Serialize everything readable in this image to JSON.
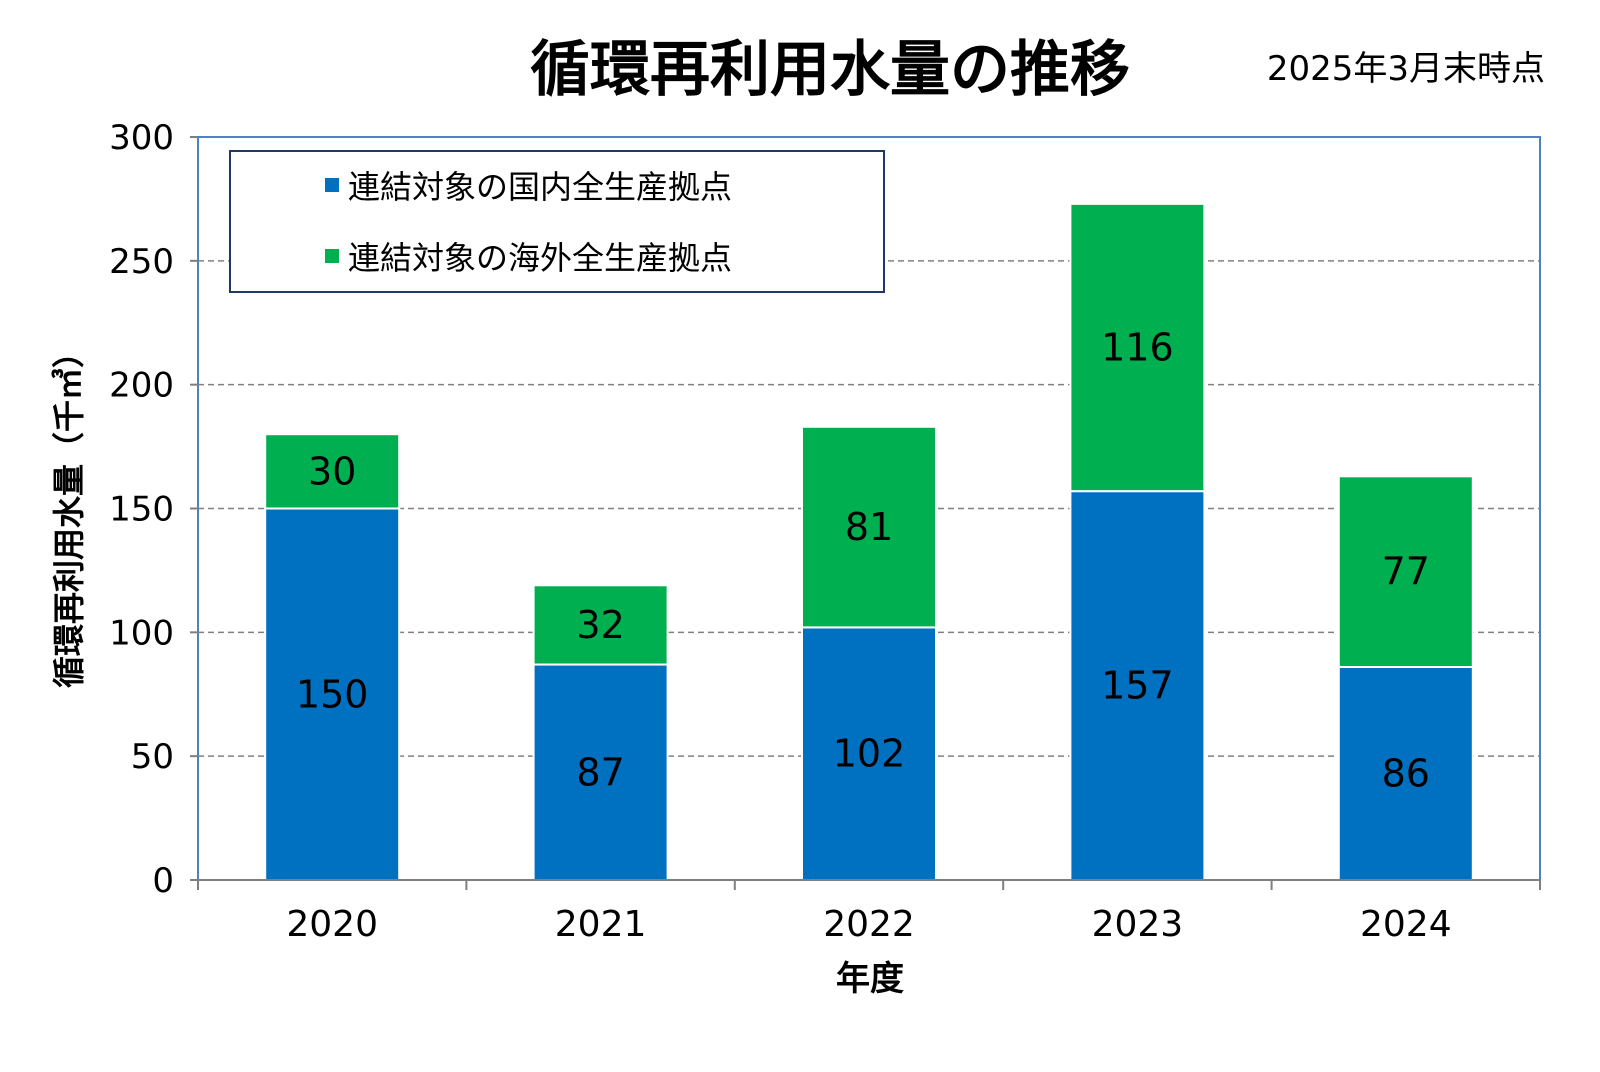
{
  "chart_data": {
    "type": "bar",
    "stacked": true,
    "title": "循環再利用水量の推移",
    "subtitle": "2025年3月末時点",
    "xlabel": "年度",
    "ylabel": "循環再利用水量（千㎥）",
    "categories": [
      "2020",
      "2021",
      "2022",
      "2023",
      "2024"
    ],
    "series": [
      {
        "name": "連結対象の国内全生産拠点",
        "color": "#0070c0",
        "values": [
          150,
          87,
          102,
          157,
          86
        ]
      },
      {
        "name": "連結対象の海外全生産拠点",
        "color": "#00b050",
        "values": [
          30,
          32,
          81,
          116,
          77
        ]
      }
    ],
    "ylim": [
      0,
      300
    ],
    "yticks": [
      0,
      50,
      100,
      150,
      200,
      250,
      300
    ],
    "grid": true,
    "legend": "top-left",
    "colors": {
      "axis": "#7f7f7f",
      "plot_border": "#4f81bd",
      "legend_border": "#1f3864",
      "grid": "#808080"
    }
  }
}
